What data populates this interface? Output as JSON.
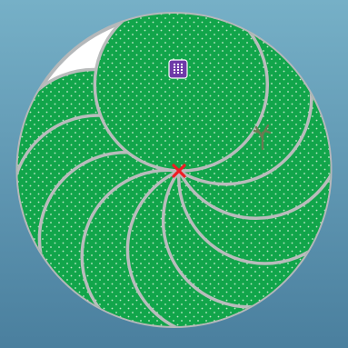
{
  "scene": {
    "background_top_color": "#76b0c7",
    "background_bottom_color": "#4a7f9e",
    "arena_fill": "#ffffff",
    "arena_outline": "#b5b8ba",
    "petal_fill": "#11a54a",
    "petal_outline": "#b9bcbc",
    "petal_dot_color": "#bfe8c8"
  },
  "game": {
    "petal_count": 10,
    "center_marker": {
      "icon": "x-mark-icon",
      "color": "#ee1c24"
    },
    "token": {
      "icon": "grid-token-icon",
      "color": "#6e3aa8"
    },
    "sprout": {
      "icon": "sprout-icon",
      "color": "#6b7a52"
    }
  }
}
